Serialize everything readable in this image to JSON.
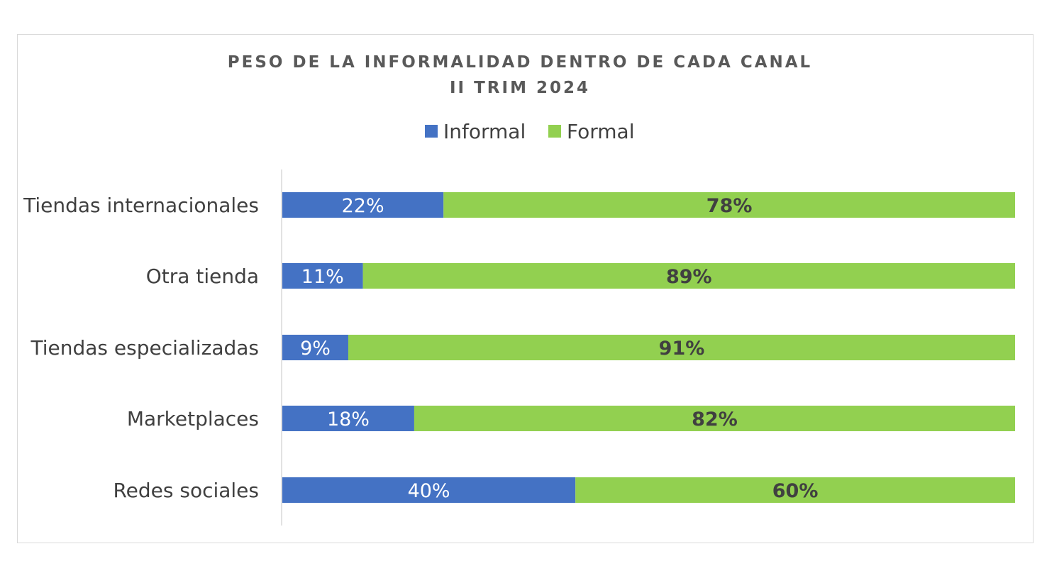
{
  "chart_data": {
    "type": "bar",
    "orientation": "horizontal",
    "stacked": true,
    "title": "PESO DE LA INFORMALIDAD DENTRO DE CADA CANAL",
    "subtitle": "II TRIM 2024",
    "categories": [
      "Tiendas internacionales",
      "Otra tienda",
      "Tiendas especializadas",
      "Marketplaces",
      "Redes sociales"
    ],
    "series": [
      {
        "name": "Informal",
        "values": [
          22,
          11,
          9,
          18,
          40
        ],
        "labels": [
          "22%",
          "11%",
          "9%",
          "18%",
          "40%"
        ],
        "color": "#4472C4"
      },
      {
        "name": "Formal",
        "values": [
          78,
          89,
          91,
          82,
          60
        ],
        "labels": [
          "78%",
          "89%",
          "91%",
          "82%",
          "60%"
        ],
        "color": "#92D050"
      }
    ],
    "xlim": [
      0,
      100
    ],
    "grid": false,
    "legend": "top"
  }
}
